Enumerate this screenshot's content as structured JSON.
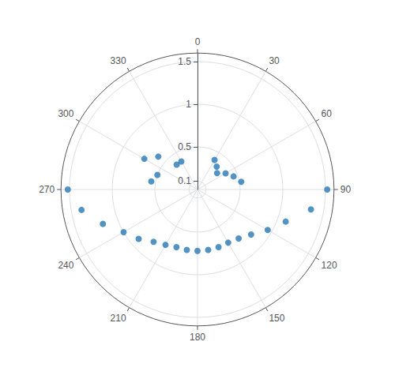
{
  "chart_data": {
    "type": "polar",
    "x": [
      30,
      40,
      50,
      60,
      70,
      80,
      90,
      100,
      110,
      120,
      130,
      140,
      150,
      160,
      170,
      180,
      190,
      200,
      210,
      220,
      230,
      240,
      250,
      260,
      270,
      280,
      290,
      300,
      310,
      320,
      330
    ],
    "values": [
      0.4,
      0.35,
      0.3,
      0.38,
      0.45,
      0.52,
      1.52,
      1.35,
      1.1,
      0.95,
      0.82,
      0.75,
      0.72,
      0.72,
      0.72,
      0.72,
      0.72,
      0.72,
      0.75,
      0.8,
      0.9,
      1.0,
      1.18,
      1.38,
      1.52,
      0.55,
      0.5,
      0.72,
      0.6,
      0.38,
      0.38
    ],
    "xlim": [
      0,
      360
    ],
    "xticks": [
      0,
      30,
      60,
      90,
      120,
      150,
      180,
      210,
      240,
      270,
      300,
      330
    ],
    "ylim": [
      0,
      1.6
    ],
    "yticks": [
      0.1,
      0.5,
      1,
      1.5
    ],
    "color": "#2878b5",
    "marker": "circle",
    "grid": true
  }
}
